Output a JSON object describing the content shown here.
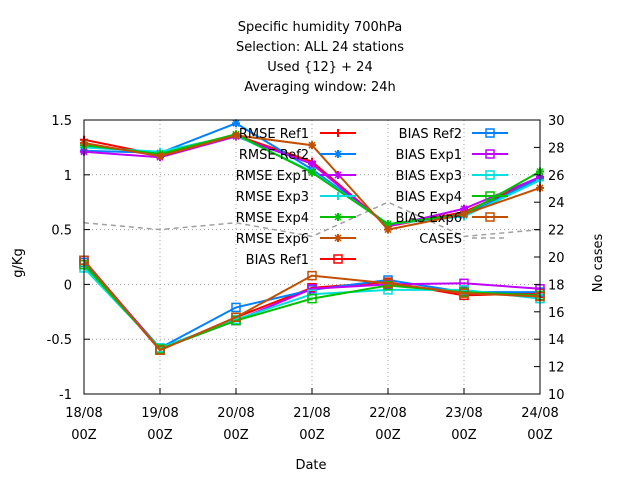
{
  "chart_data": {
    "type": "line",
    "title_lines": [
      "Specific humidity 700hPa",
      "Selection: ALL      24 stations",
      "Used {12} + 24",
      "Averaging window: 24h"
    ],
    "xlabel": "Date",
    "ylabel": "g/Kg",
    "y2label": "No cases",
    "x_ticks": [
      {
        "line1": "18/08",
        "line2": "00Z"
      },
      {
        "line1": "19/08",
        "line2": "00Z"
      },
      {
        "line1": "20/08",
        "line2": "00Z"
      },
      {
        "line1": "21/08",
        "line2": "00Z"
      },
      {
        "line1": "22/08",
        "line2": "00Z"
      },
      {
        "line1": "23/08",
        "line2": "00Z"
      },
      {
        "line1": "24/08",
        "line2": "00Z"
      }
    ],
    "ylim": [
      -1,
      1.5
    ],
    "y_ticks": [
      "1.5",
      "1",
      "0.5",
      "0",
      "-0.5",
      "-1"
    ],
    "y_tick_values": [
      1.5,
      1,
      0.5,
      0,
      -0.5,
      -1
    ],
    "y2lim": [
      10,
      30
    ],
    "y2_ticks": [
      "30",
      "28",
      "26",
      "24",
      "22",
      "20",
      "18",
      "16",
      "14",
      "12",
      "10"
    ],
    "y2_tick_values": [
      30,
      28,
      26,
      24,
      22,
      20,
      18,
      16,
      14,
      12,
      10
    ],
    "grid": true,
    "legend_placement": "top-right",
    "series": [
      {
        "name": "RMSE Ref1",
        "color": "#ff0000",
        "marker": "plus",
        "axis": "y1",
        "values": [
          1.32,
          1.18,
          1.36,
          1.12,
          0.53,
          0.66,
          0.97
        ]
      },
      {
        "name": "RMSE Ref2",
        "color": "#0080ff",
        "marker": "star",
        "axis": "y1",
        "values": [
          1.22,
          1.2,
          1.47,
          1.05,
          0.55,
          0.63,
          0.97
        ]
      },
      {
        "name": "RMSE Exp1",
        "color": "#c000ff",
        "marker": "star",
        "axis": "y1",
        "values": [
          1.21,
          1.16,
          1.35,
          1.1,
          0.53,
          0.69,
          0.98
        ]
      },
      {
        "name": "RMSE Exp3",
        "color": "#00e0e0",
        "marker": "plus",
        "axis": "y1",
        "values": [
          1.25,
          1.21,
          1.36,
          1.03,
          0.55,
          0.62,
          0.95
        ]
      },
      {
        "name": "RMSE Exp4",
        "color": "#00c000",
        "marker": "star",
        "axis": "y1",
        "values": [
          1.27,
          1.19,
          1.37,
          1.02,
          0.55,
          0.64,
          1.03
        ]
      },
      {
        "name": "RMSE Exp6",
        "color": "#c05000",
        "marker": "star",
        "axis": "y1",
        "values": [
          1.29,
          1.17,
          1.36,
          1.27,
          0.5,
          0.64,
          0.88
        ]
      },
      {
        "name": "BIAS Ref1",
        "color": "#ff0000",
        "marker": "square",
        "axis": "y1",
        "values": [
          0.2,
          -0.6,
          -0.3,
          -0.03,
          0.02,
          -0.1,
          -0.08
        ]
      },
      {
        "name": "BIAS Ref2",
        "color": "#0080ff",
        "marker": "square",
        "axis": "y1",
        "values": [
          0.2,
          -0.58,
          -0.21,
          -0.05,
          0.04,
          -0.07,
          -0.07
        ]
      },
      {
        "name": "BIAS Exp1",
        "color": "#c000ff",
        "marker": "square",
        "axis": "y1",
        "values": [
          0.22,
          -0.59,
          -0.33,
          -0.04,
          0.0,
          0.01,
          -0.04
        ]
      },
      {
        "name": "BIAS Exp3",
        "color": "#00e0e0",
        "marker": "square",
        "axis": "y1",
        "values": [
          0.15,
          -0.58,
          -0.32,
          -0.09,
          -0.05,
          -0.05,
          -0.13
        ]
      },
      {
        "name": "BIAS Exp4",
        "color": "#00c000",
        "marker": "square",
        "axis": "y1",
        "values": [
          0.18,
          -0.59,
          -0.33,
          -0.13,
          -0.01,
          -0.07,
          -0.1
        ]
      },
      {
        "name": "BIAS Exp6",
        "color": "#c05000",
        "marker": "square",
        "axis": "y1",
        "values": [
          0.22,
          -0.6,
          -0.3,
          0.08,
          0.01,
          -0.08,
          -0.11
        ]
      },
      {
        "name": "CASES",
        "color": "#a0a0a0",
        "marker": "none",
        "dashed": true,
        "axis": "y2",
        "values": [
          22.5,
          22.0,
          22.5,
          21.5,
          24.0,
          21.5,
          22.0
        ]
      }
    ]
  }
}
